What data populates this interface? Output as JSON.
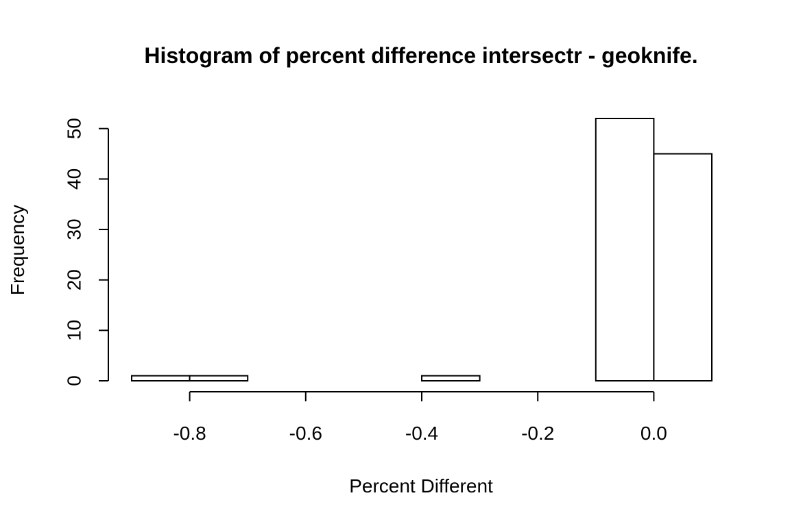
{
  "chart_data": {
    "type": "bar",
    "title": "Histogram of percent difference intersectr - geoknife.",
    "xlabel": "Percent Different",
    "ylabel": "Frequency",
    "bins": [
      {
        "start": -0.9,
        "end": -0.8,
        "count": 1
      },
      {
        "start": -0.8,
        "end": -0.7,
        "count": 1
      },
      {
        "start": -0.7,
        "end": -0.6,
        "count": 0
      },
      {
        "start": -0.6,
        "end": -0.5,
        "count": 0
      },
      {
        "start": -0.5,
        "end": -0.4,
        "count": 0
      },
      {
        "start": -0.4,
        "end": -0.3,
        "count": 1
      },
      {
        "start": -0.3,
        "end": -0.2,
        "count": 0
      },
      {
        "start": -0.2,
        "end": -0.1,
        "count": 0
      },
      {
        "start": -0.1,
        "end": 0.0,
        "count": 52
      },
      {
        "start": 0.0,
        "end": 0.1,
        "count": 45
      }
    ],
    "xlim": [
      -0.9,
      0.1
    ],
    "ylim": [
      0,
      52
    ],
    "x_ticks": [
      -0.8,
      -0.6,
      -0.4,
      -0.2,
      0.0
    ],
    "x_tick_labels": [
      "-0.8",
      "-0.6",
      "-0.4",
      "-0.2",
      "0.0"
    ],
    "y_ticks": [
      0,
      10,
      20,
      30,
      40,
      50
    ],
    "y_tick_labels": [
      "0",
      "10",
      "20",
      "30",
      "40",
      "50"
    ],
    "grid": false,
    "legend": "none"
  }
}
